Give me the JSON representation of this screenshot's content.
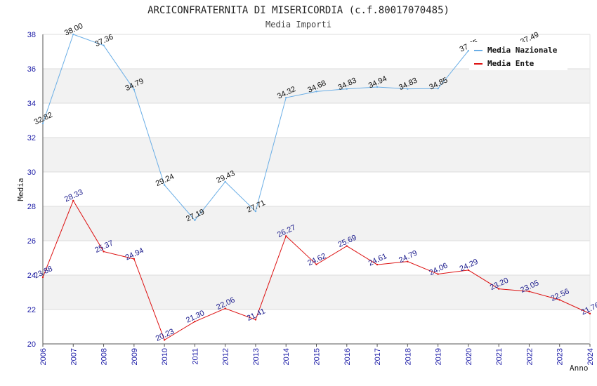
{
  "chart_data": {
    "type": "line",
    "title": "ARCICONFRATERNITA DI MISERICORDIA (c.f.80017070485)",
    "subtitle": "Media Importi",
    "xlabel": "Anno",
    "ylabel": "Media",
    "ylim": [
      20,
      38
    ],
    "yticks": [
      "20",
      "22",
      "24",
      "26",
      "28",
      "30",
      "32",
      "34",
      "36",
      "38"
    ],
    "categories": [
      "2006",
      "2007",
      "2008",
      "2009",
      "2010",
      "2011",
      "2012",
      "2013",
      "2014",
      "2015",
      "2016",
      "2017",
      "2018",
      "2019",
      "2020",
      "2021",
      "2022",
      "2023",
      "2024"
    ],
    "series": [
      {
        "name": "Media Nazionale",
        "color": "#6aaee6",
        "values": [
          32.82,
          38.0,
          37.36,
          34.79,
          29.24,
          27.19,
          29.43,
          27.71,
          34.32,
          34.68,
          34.83,
          34.94,
          34.83,
          34.85,
          37.05,
          null,
          37.49,
          null,
          null
        ],
        "labels": [
          "32.82",
          "38.00",
          "37.36",
          "34.79",
          "29.24",
          "27.19",
          "29.43",
          "27.71",
          "34.32",
          "34.68",
          "34.83",
          "34.94",
          "34.83",
          "34.85",
          "37.05",
          null,
          "37.49",
          null,
          null
        ]
      },
      {
        "name": "Media Ente",
        "color": "#dd1111",
        "values": [
          23.88,
          28.33,
          25.37,
          24.94,
          20.23,
          21.3,
          22.06,
          21.41,
          26.27,
          24.62,
          25.69,
          24.61,
          24.79,
          24.06,
          24.29,
          23.2,
          23.05,
          22.56,
          21.76
        ],
        "labels": [
          "23.88",
          "28.33",
          "25.37",
          "24.94",
          "20.23",
          "21.30",
          "22.06",
          "21.41",
          "26.27",
          "24.62",
          "25.69",
          "24.61",
          "24.79",
          "24.06",
          "24.29",
          "23.20",
          "23.05",
          "22.56",
          "21.76"
        ]
      }
    ],
    "legend": [
      "Media Nazionale",
      "Media Ente"
    ],
    "legend_position": "top-right",
    "grid": true,
    "band_color": "#f2f2f2"
  }
}
